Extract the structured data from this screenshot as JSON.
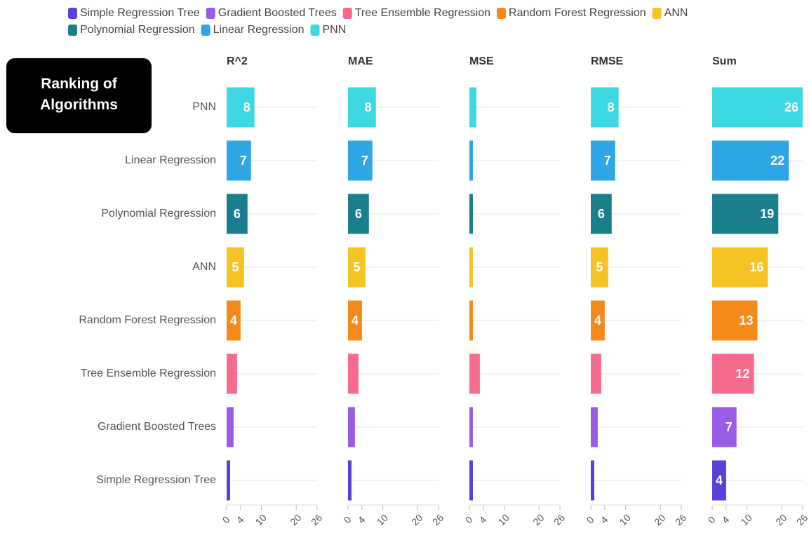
{
  "chart_data": {
    "type": "bar",
    "orientation": "horizontal",
    "annotation": "Ranking of Algorithms",
    "categories": [
      "PNN",
      "Linear Regression",
      "Polynomial Regression",
      "ANN",
      "Random Forest Regression",
      "Tree Ensemble Regression",
      "Gradient Boosted Trees",
      "Simple Regression Tree"
    ],
    "colors": [
      "#3ed8e2",
      "#2fa6e6",
      "#1a7f8c",
      "#f6c324",
      "#f5891a",
      "#f66b8c",
      "#9a5ce6",
      "#5a3fdb"
    ],
    "legend": [
      {
        "name": "Simple Regression Tree",
        "color": "#5a3fdb"
      },
      {
        "name": "Gradient Boosted Trees",
        "color": "#9a5ce6"
      },
      {
        "name": "Tree Ensemble Regression",
        "color": "#f66b8c"
      },
      {
        "name": "Random Forest Regression",
        "color": "#f5891a"
      },
      {
        "name": "ANN",
        "color": "#f6c324"
      },
      {
        "name": "Polynomial Regression",
        "color": "#1a7f8c"
      },
      {
        "name": "Linear Regression",
        "color": "#2fa6e6"
      },
      {
        "name": "PNN",
        "color": "#3ed8e2"
      }
    ],
    "panels": [
      {
        "title": "R^2",
        "values": [
          8,
          7,
          6,
          5,
          4,
          3,
          2,
          1
        ]
      },
      {
        "title": "MAE",
        "values": [
          8,
          7,
          6,
          5,
          4,
          3,
          2,
          1
        ]
      },
      {
        "title": "MSE",
        "values": [
          2,
          1,
          1,
          1,
          1,
          3,
          1,
          1
        ]
      },
      {
        "title": "RMSE",
        "values": [
          8,
          7,
          6,
          5,
          4,
          3,
          2,
          1
        ]
      },
      {
        "title": "Sum",
        "values": [
          26,
          22,
          19,
          16,
          13,
          12,
          7,
          4
        ]
      }
    ],
    "xlim": [
      0,
      26
    ],
    "xticks": [
      0,
      4,
      10,
      20,
      26
    ],
    "grid": true
  }
}
